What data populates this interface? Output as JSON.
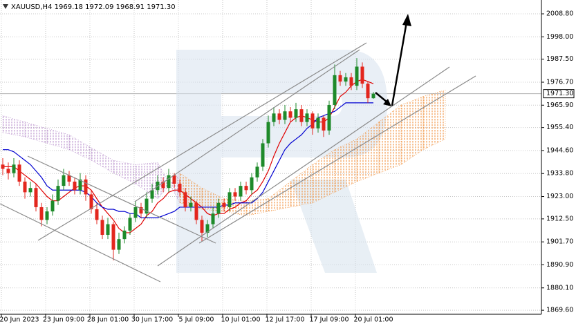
{
  "chart_data": {
    "type": "candlestick",
    "title": "XAUUSD,H4  1969.18 1972.09 1968.91 1971.30",
    "categories": [
      null,
      null,
      null,
      "20 Jun 2023",
      null,
      null,
      null,
      null,
      null,
      null,
      null,
      "23 Jun 09:00",
      null,
      null,
      null,
      null,
      null,
      null,
      null,
      "28 Jun 01:00",
      null,
      null,
      null,
      null,
      null,
      null,
      null,
      "30 Jun 17:00",
      null,
      null,
      null,
      null,
      null,
      null,
      null,
      "5 Jul 09:00",
      null,
      null,
      null,
      null,
      null,
      null,
      null,
      "10 Jul 01:00",
      null,
      null,
      null,
      null,
      null,
      null,
      null,
      "12 Jul 17:00",
      null,
      null,
      null,
      null,
      null,
      null,
      null,
      "17 Jul 09:00",
      null,
      null,
      null,
      null,
      null,
      null,
      null,
      "20 Jul 01:00"
    ],
    "open": [
      1938,
      1936,
      1934,
      1938,
      1930,
      1925,
      1927,
      1918,
      1912,
      1916,
      1921,
      1928,
      1933,
      1930,
      1926,
      1931,
      1924,
      1917,
      1912,
      1905,
      1910,
      1898,
      1903,
      1907,
      1913,
      1918,
      1915,
      1922,
      1926,
      1930,
      1927,
      1933,
      1929,
      1925,
      1918,
      1920,
      1912,
      1906,
      1910,
      1915,
      1920,
      1918,
      1925,
      1923,
      1928,
      1926,
      1932,
      1937,
      1948,
      1958,
      1962,
      1959,
      1963,
      1960,
      1964,
      1958,
      1962,
      1955,
      1960,
      1954,
      1966,
      1980,
      1977,
      1979,
      1975,
      1984,
      1976,
      1969.18
    ],
    "high": [
      1941,
      1939,
      1941,
      1940,
      1932,
      1930,
      1929,
      1920,
      1918,
      1924,
      1931,
      1936,
      1935,
      1932,
      1934,
      1933,
      1926,
      1920,
      1914,
      1913,
      1911,
      1906,
      1909,
      1915,
      1921,
      1920,
      1925,
      1929,
      1933,
      1932,
      1936,
      1934,
      1931,
      1927,
      1923,
      1921,
      1914,
      1912,
      1918,
      1922,
      1922,
      1927,
      1927,
      1930,
      1930,
      1934,
      1939,
      1950,
      1961,
      1965,
      1964,
      1966,
      1965,
      1967,
      1966,
      1964,
      1963,
      1962,
      1961,
      1968,
      1985,
      1982,
      1981,
      1981,
      1988,
      1986,
      1977,
      1972.09
    ],
    "low": [
      1933,
      1931,
      1932,
      1928,
      1922,
      1923,
      1916,
      1909,
      1910,
      1914,
      1919,
      1926,
      1928,
      1924,
      1924,
      1921,
      1915,
      1910,
      1903,
      1903,
      1893,
      1896,
      1901,
      1905,
      1911,
      1913,
      1913,
      1920,
      1924,
      1925,
      1925,
      1927,
      1923,
      1916,
      1916,
      1910,
      1902,
      1904,
      1908,
      1913,
      1916,
      1916,
      1921,
      1921,
      1924,
      1924,
      1930,
      1935,
      1946,
      1956,
      1957,
      1957,
      1958,
      1958,
      1956,
      1956,
      1952,
      1953,
      1951,
      1952,
      1964,
      1975,
      1975,
      1973,
      1973,
      1974,
      1967,
      1968.91
    ],
    "close": [
      1936,
      1934,
      1938,
      1930,
      1925,
      1927,
      1918,
      1912,
      1916,
      1921,
      1928,
      1933,
      1930,
      1926,
      1931,
      1924,
      1917,
      1912,
      1905,
      1910,
      1898,
      1903,
      1907,
      1913,
      1918,
      1915,
      1922,
      1926,
      1930,
      1927,
      1933,
      1929,
      1925,
      1918,
      1920,
      1912,
      1906,
      1910,
      1915,
      1920,
      1918,
      1925,
      1923,
      1928,
      1926,
      1932,
      1937,
      1948,
      1958,
      1962,
      1959,
      1963,
      1960,
      1964,
      1958,
      1962,
      1955,
      1960,
      1954,
      1966,
      1980,
      1977,
      1979,
      1975,
      1984,
      1976,
      1969.18,
      1971.3
    ],
    "up_color": "#1e8a2a",
    "down_color": "#e3261d",
    "series": [
      {
        "color": "#e00000",
        "values": [
          1937,
          1937,
          1937,
          1935,
          1933,
          1931,
          1929,
          1926,
          1923,
          1921,
          1921,
          1923,
          1925,
          1927,
          1928,
          1928,
          1926,
          1922,
          1918,
          1915,
          1912,
          1908,
          1906,
          1906,
          1908,
          1910,
          1914,
          1916,
          1920,
          1922,
          1925,
          1926,
          1926,
          1924,
          1922,
          1920,
          1918,
          1915,
          1914,
          1915,
          1915,
          1917,
          1918,
          1920,
          1921,
          1924,
          1926,
          1930,
          1935,
          1942,
          1948,
          1953,
          1958,
          1960,
          1961,
          1960,
          1959,
          1958,
          1958,
          1960,
          1965,
          1970,
          1972,
          1975,
          1977,
          1978,
          1977,
          1976
        ]
      },
      {
        "color": "#0000d0",
        "values": [
          1945,
          1945,
          1944,
          1942,
          1940,
          1938,
          1935,
          1932,
          1928,
          1926,
          1926,
          1926,
          1926,
          1926,
          1926,
          1925,
          1923,
          1920,
          1918,
          1917,
          1917,
          1916,
          1916,
          1915,
          1915,
          1913,
          1913,
          1913,
          1913,
          1914,
          1915,
          1916,
          1918,
          1918,
          1918,
          1918,
          1918,
          1918,
          1918,
          1918,
          1919,
          1919,
          1920,
          1920,
          1920,
          1920,
          1922,
          1925,
          1930,
          1935,
          1940,
          1945,
          1948,
          1950,
          1952,
          1955,
          1957,
          1960,
          1961,
          1962,
          1963,
          1965,
          1967,
          1967,
          1967,
          1967,
          1967,
          1967
        ]
      }
    ],
    "cloud": {
      "x": [
        0,
        4,
        8,
        12,
        16,
        20,
        24,
        28,
        32,
        36,
        40,
        44,
        48,
        52,
        56,
        60,
        64,
        68,
        72,
        76,
        80
      ],
      "span_a": [
        1953,
        1951,
        1948,
        1945,
        1940,
        1934,
        1929,
        1922,
        1934,
        1927,
        1922,
        1921,
        1922,
        1930,
        1938,
        1945,
        1950,
        1958,
        1966,
        1970,
        1973
      ],
      "span_b": [
        1961,
        1958,
        1955,
        1952,
        1946,
        1940,
        1938,
        1939,
        1920,
        1917,
        1916,
        1914,
        1916,
        1918,
        1920,
        1925,
        1930,
        1934,
        1938,
        1945,
        1950
      ],
      "up_color": "#f08a30",
      "down_color": "#b48ac8"
    },
    "ylim": [
      1867.7,
      2015.3
    ],
    "yticks": [
      {
        "value": 2008.8,
        "label": "2008.80"
      },
      {
        "value": 1998,
        "label": "1998.00"
      },
      {
        "value": 1987.5,
        "label": "1987.50"
      },
      {
        "value": 1976.7,
        "label": "1976.70"
      },
      {
        "value": 1965.9,
        "label": "1965.90"
      },
      {
        "value": 1955.4,
        "label": "1955.40"
      },
      {
        "value": 1944.6,
        "label": "1944.60"
      },
      {
        "value": 1933.8,
        "label": "1933.80"
      },
      {
        "value": 1923,
        "label": "1923.00"
      },
      {
        "value": 1912.5,
        "label": "1912.50"
      },
      {
        "value": 1901.7,
        "label": "1901.70"
      },
      {
        "value": 1890.9,
        "label": "1890.90"
      },
      {
        "value": 1880.1,
        "label": "1880.10"
      },
      {
        "value": 1869.6,
        "label": "1869.60"
      }
    ],
    "last_price": {
      "value": 1971.3,
      "label": "1971.30"
    },
    "grid": true
  }
}
